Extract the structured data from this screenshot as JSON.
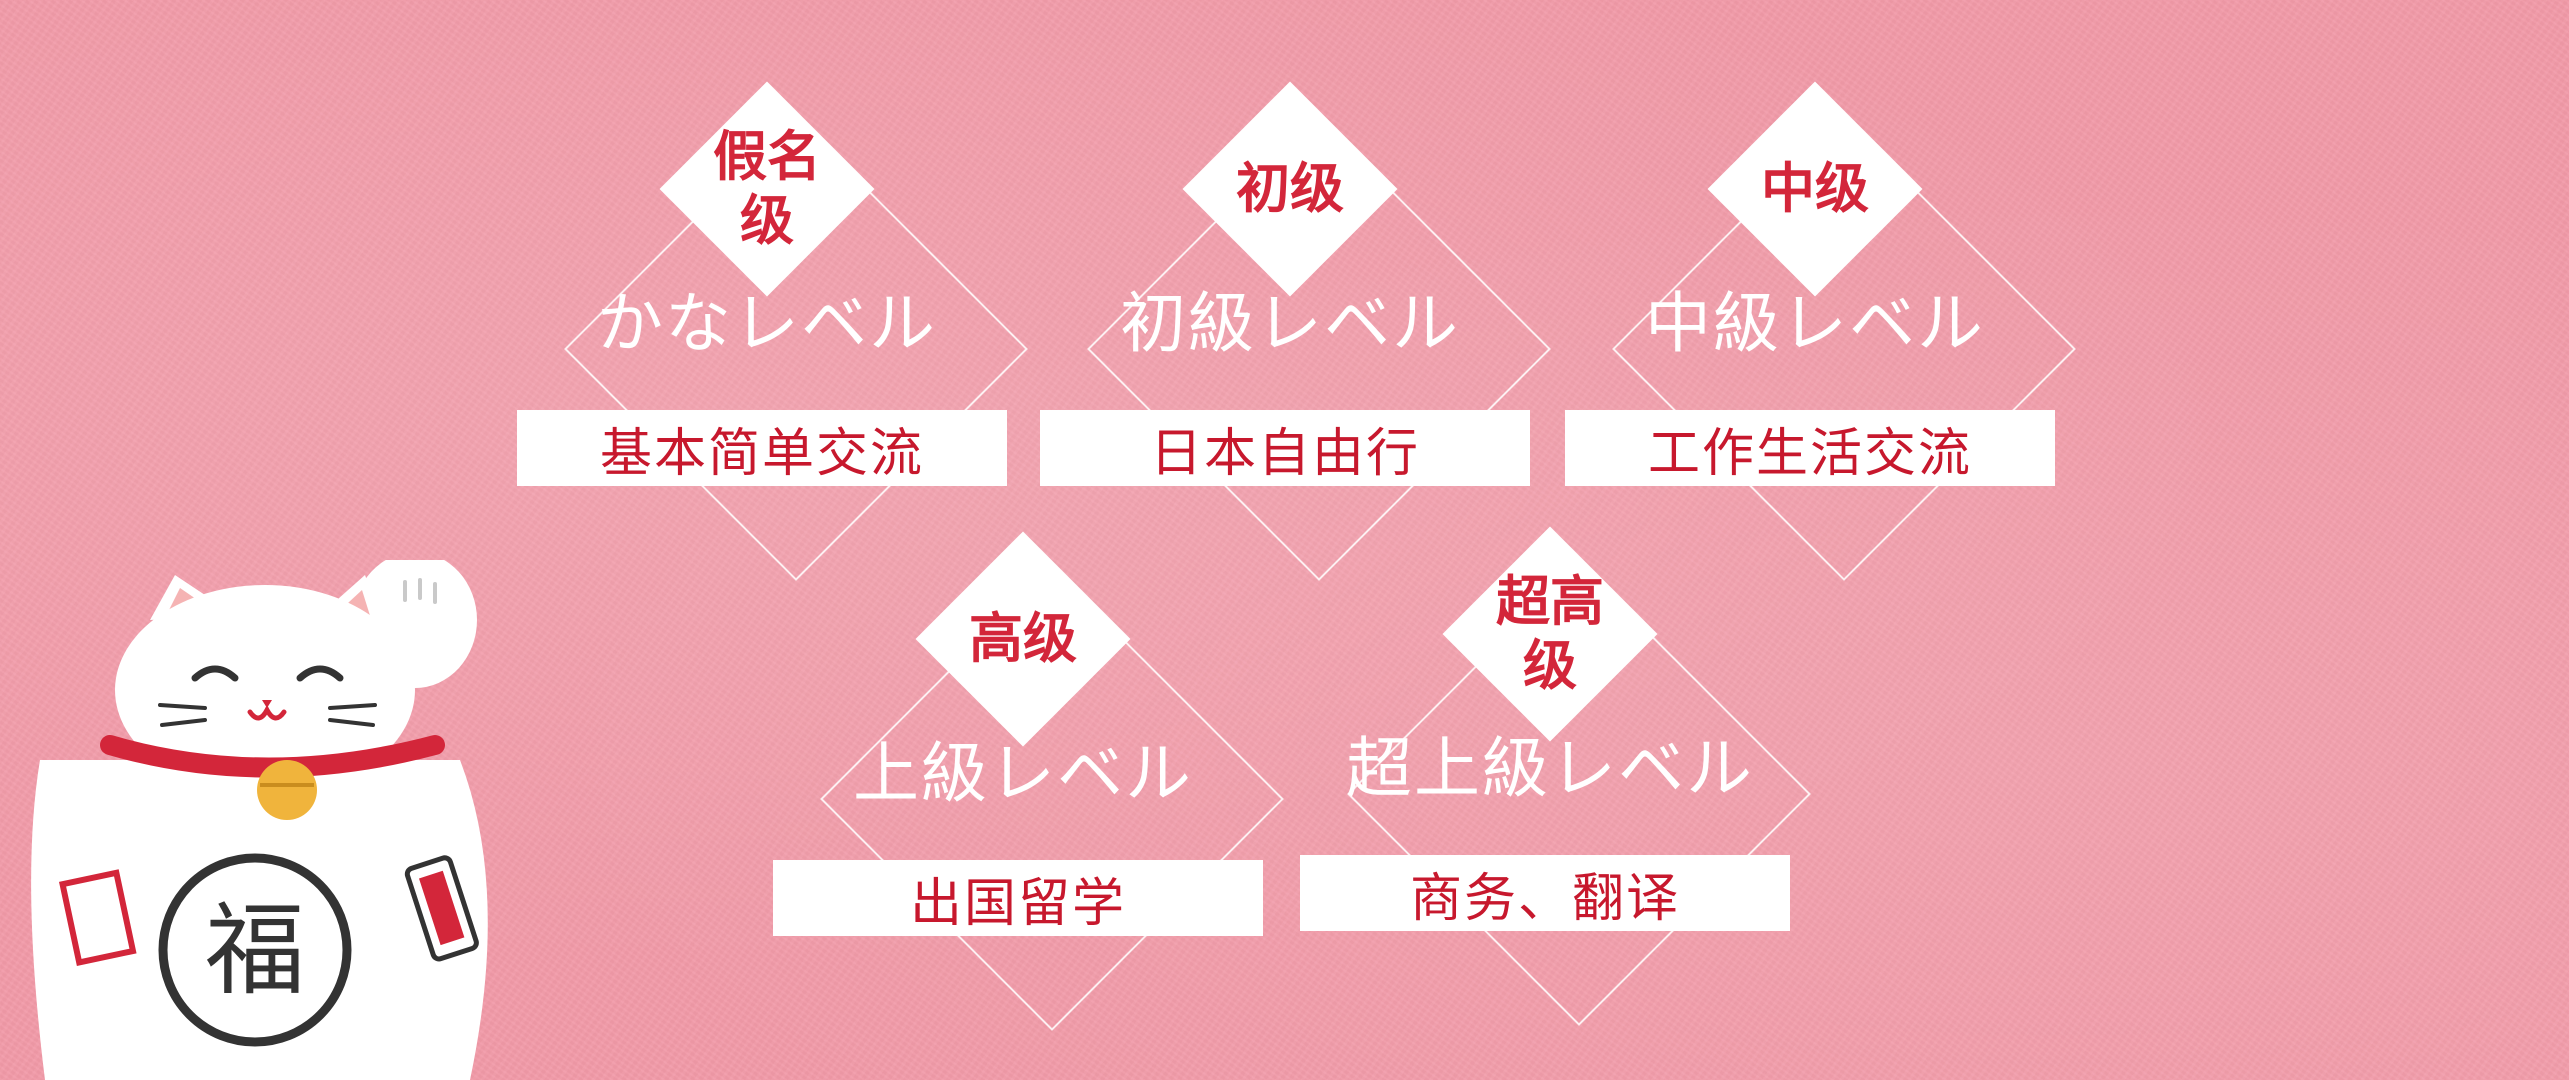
{
  "levels": [
    {
      "badge": "假名\n级",
      "jp": "かなレベル",
      "desc": "基本简单交流"
    },
    {
      "badge": "初级",
      "jp": "初級レベル",
      "desc": "日本自由行"
    },
    {
      "badge": "中级",
      "jp": "中級レベル",
      "desc": "工作生活交流"
    },
    {
      "badge": "高级",
      "jp": "上級レベル",
      "desc": "出国留学"
    },
    {
      "badge": "超高\n级",
      "jp": "超上級レベル",
      "desc": "商务、翻译"
    }
  ],
  "mascot": {
    "name": "maneki-neko-icon",
    "emblem": "福"
  },
  "colors": {
    "background": "#f29aa8",
    "accent_red": "#d3263a",
    "white": "#ffffff"
  }
}
